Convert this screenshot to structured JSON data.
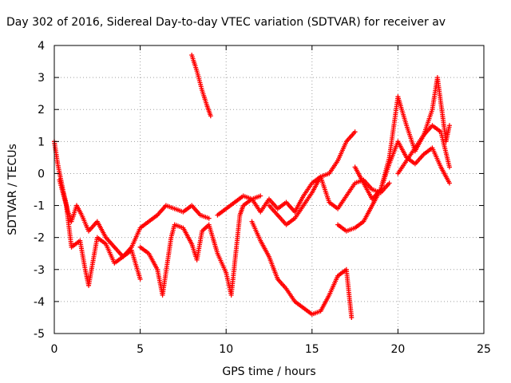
{
  "chart_data": {
    "type": "scatter",
    "title": "Day 302 of 2016, Sidereal Day-to-day VTEC variation (SDTVAR) for receiver av",
    "xlabel": "GPS time / hours",
    "ylabel": "SDTVAR / TECUs",
    "xlim": [
      0,
      25
    ],
    "ylim": [
      -5,
      4
    ],
    "x_ticks": [
      "0",
      "5",
      "10",
      "15",
      "20",
      "25"
    ],
    "y_ticks": [
      "-5",
      "-4",
      "-3",
      "-2",
      "-1",
      "0",
      "1",
      "2",
      "3",
      "4"
    ],
    "grid": true,
    "marker": "+",
    "color": "#ff0000",
    "series": [
      {
        "x": [
          0,
          0.2,
          0.5,
          0.8,
          1.0,
          1.3,
          1.6,
          2.0,
          2.5,
          3.0,
          3.5,
          4.0,
          4.5,
          5.0,
          5.5,
          6.0,
          6.5,
          7.0,
          7.5,
          8.0,
          8.5,
          9.0
        ],
        "y": [
          1.0,
          0.3,
          -0.5,
          -1.2,
          -1.5,
          -1.0,
          -1.3,
          -1.8,
          -1.5,
          -2.0,
          -2.3,
          -2.6,
          -2.3,
          -1.7,
          -1.5,
          -1.3,
          -1.0,
          -1.1,
          -1.2,
          -1.0,
          -1.3,
          -1.4
        ]
      },
      {
        "x": [
          0.3,
          0.7,
          1.0,
          1.5,
          1.8,
          2.0,
          2.5,
          3.0,
          3.5,
          4.0,
          4.5,
          5.0
        ],
        "y": [
          -0.2,
          -1.0,
          -2.3,
          -2.1,
          -3.0,
          -3.5,
          -2.0,
          -2.2,
          -2.8,
          -2.6,
          -2.4,
          -3.3
        ]
      },
      {
        "x": [
          8.0,
          8.3,
          8.6,
          8.9,
          9.1
        ],
        "y": [
          3.7,
          3.2,
          2.6,
          2.1,
          1.8
        ]
      },
      {
        "x": [
          5.0,
          5.5,
          6.0,
          6.3,
          6.8,
          7.0,
          7.5,
          8.0,
          8.3,
          8.6,
          9.0,
          9.5,
          10.0,
          10.3,
          10.8,
          11.0,
          11.5,
          12.0
        ],
        "y": [
          -2.3,
          -2.5,
          -3.0,
          -3.8,
          -2.0,
          -1.6,
          -1.7,
          -2.2,
          -2.7,
          -1.8,
          -1.6,
          -2.5,
          -3.1,
          -3.8,
          -1.3,
          -1.0,
          -0.8,
          -0.7
        ]
      },
      {
        "x": [
          9.5,
          10.0,
          10.5,
          11.0,
          11.5,
          12.0,
          12.5,
          13.0,
          13.5,
          14.0,
          14.5,
          15.0,
          15.5,
          16.0,
          16.5,
          17.0,
          17.5
        ],
        "y": [
          -1.3,
          -1.1,
          -0.9,
          -0.7,
          -0.8,
          -1.2,
          -0.8,
          -1.1,
          -0.9,
          -1.2,
          -0.7,
          -0.3,
          -0.1,
          0.0,
          0.4,
          1.0,
          1.3
        ]
      },
      {
        "x": [
          11.5,
          12.0,
          12.5,
          13.0,
          13.5,
          14.0,
          14.5,
          15.0,
          15.5,
          16.0,
          16.5,
          17.0,
          17.3
        ],
        "y": [
          -1.5,
          -2.1,
          -2.6,
          -3.3,
          -3.6,
          -4.0,
          -4.2,
          -4.4,
          -4.3,
          -3.8,
          -3.2,
          -3.0,
          -4.5
        ]
      },
      {
        "x": [
          12.5,
          13.0,
          13.5,
          14.0,
          14.5,
          15.0,
          15.5,
          16.0,
          16.5,
          17.0,
          17.5,
          18.0,
          18.5,
          19.0,
          19.5
        ],
        "y": [
          -1.0,
          -1.3,
          -1.6,
          -1.4,
          -1.0,
          -0.6,
          -0.1,
          -0.9,
          -1.1,
          -0.7,
          -0.3,
          -0.2,
          -0.5,
          -0.6,
          -0.3
        ]
      },
      {
        "x": [
          16.5,
          17.0,
          17.5,
          18.0,
          18.5,
          19.0,
          19.5,
          20.0,
          20.5,
          21.0,
          21.5,
          22.0,
          22.5,
          23.0
        ],
        "y": [
          -1.6,
          -1.8,
          -1.7,
          -1.5,
          -1.0,
          -0.5,
          0.3,
          1.0,
          0.5,
          0.3,
          0.6,
          0.8,
          0.2,
          -0.3
        ]
      },
      {
        "x": [
          17.5,
          18.0,
          18.5,
          19.0,
          19.5,
          20.0,
          20.5,
          21.0,
          21.5,
          22.0,
          22.3,
          22.5,
          22.8,
          23.0
        ],
        "y": [
          0.2,
          -0.3,
          -0.8,
          -0.5,
          0.5,
          2.4,
          1.5,
          0.7,
          1.2,
          2.0,
          3.0,
          2.2,
          1.0,
          1.5
        ]
      },
      {
        "x": [
          20.0,
          20.5,
          21.0,
          21.5,
          22.0,
          22.5,
          23.0
        ],
        "y": [
          0.0,
          0.4,
          0.8,
          1.2,
          1.5,
          1.3,
          0.2
        ]
      }
    ]
  }
}
